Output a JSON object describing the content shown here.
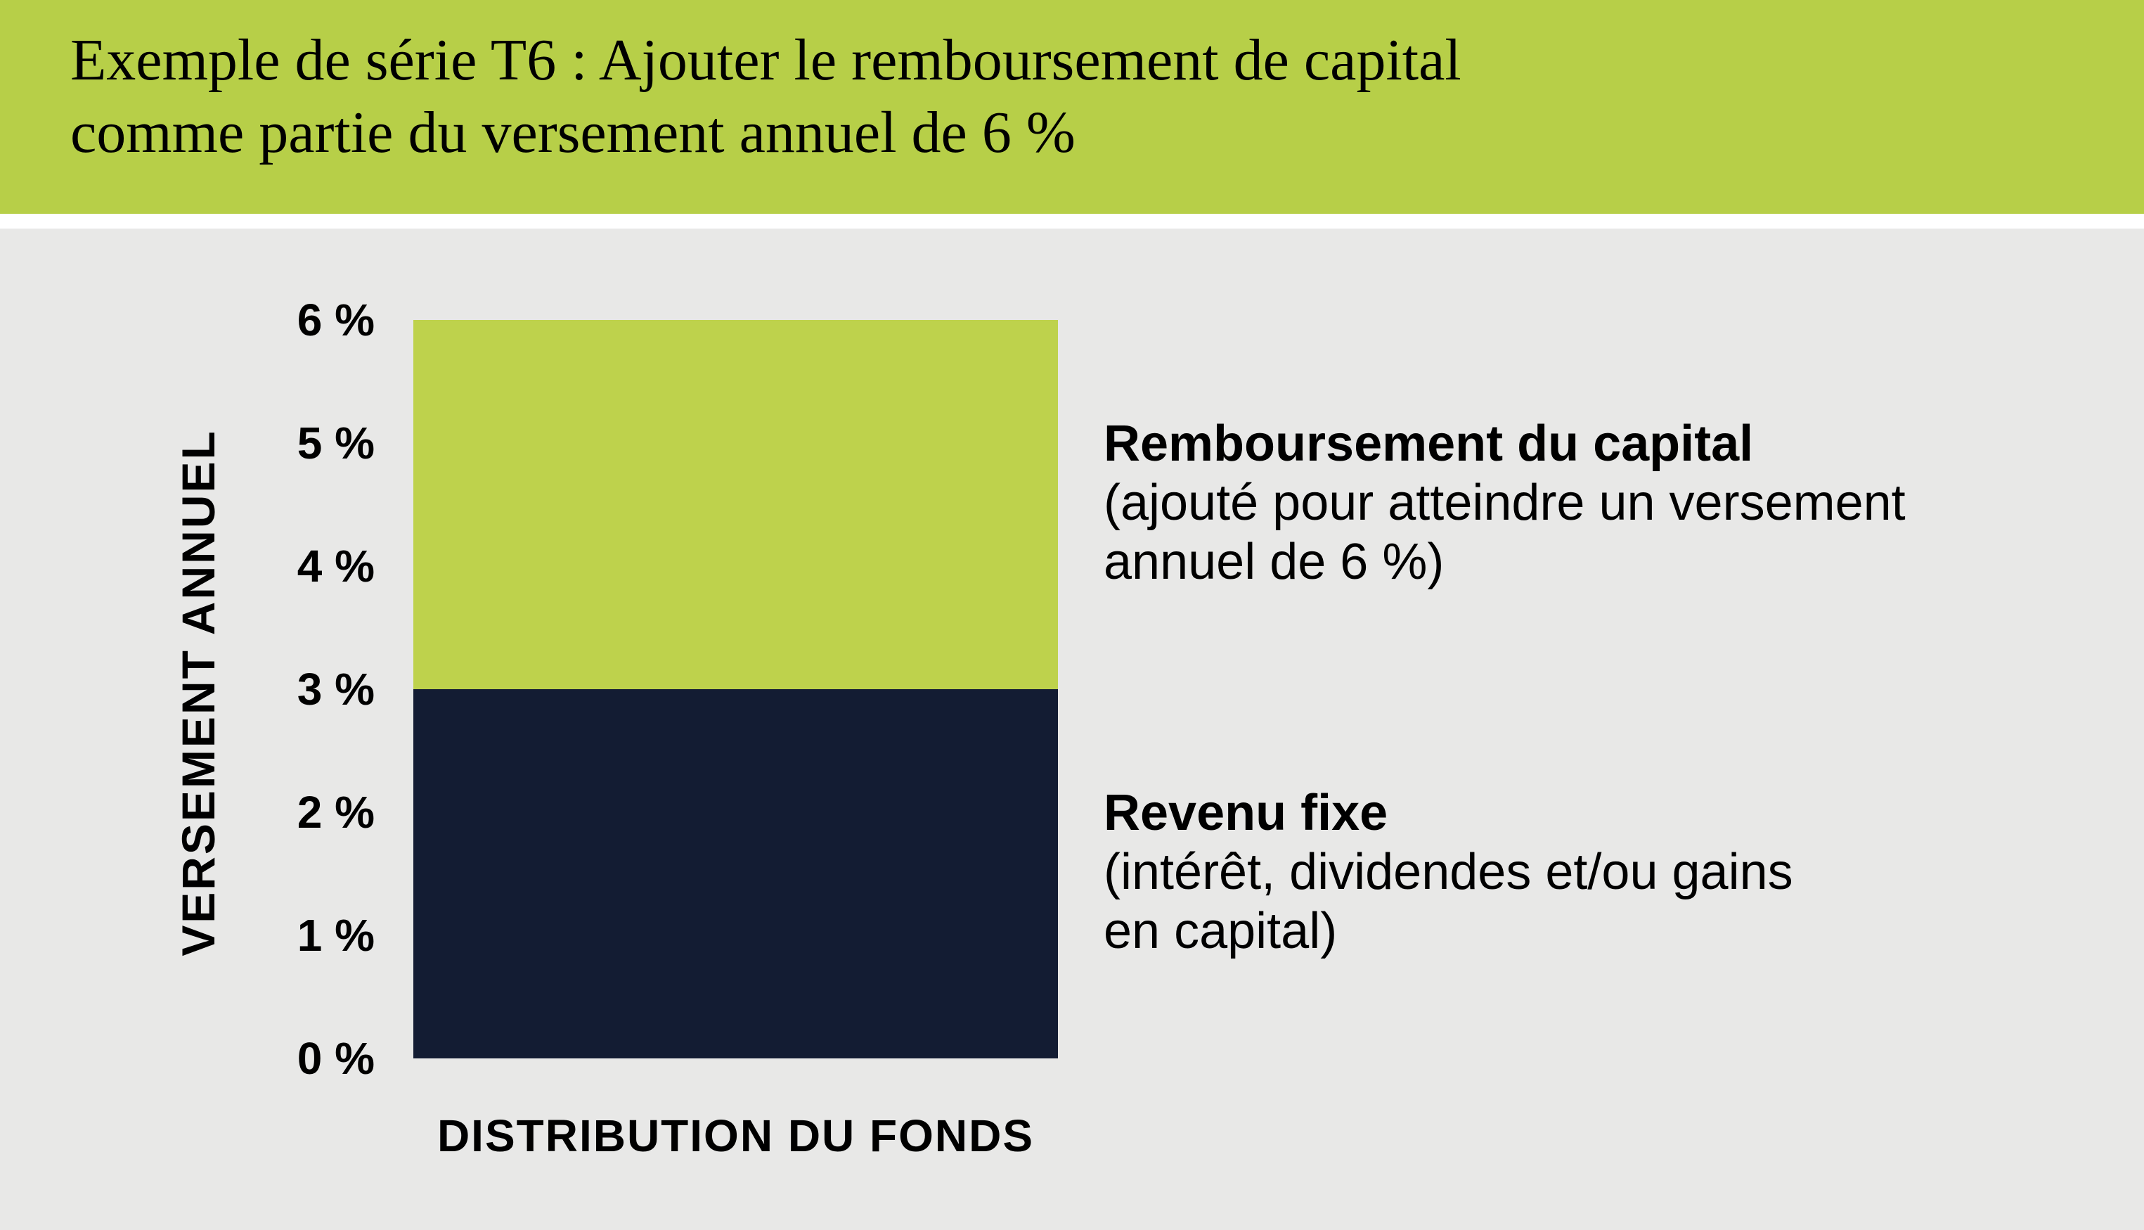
{
  "header": {
    "title_line1": "Exemple de série T6 : Ajouter le remboursement de capital",
    "title_line2": "comme partie du versement annuel de 6 %"
  },
  "colors": {
    "banner_green": "#B7CF48",
    "panel_gray": "#E8E8E7",
    "segment_green": "#BED24C",
    "segment_navy": "#131C33",
    "text_black": "#000000"
  },
  "chart_data": {
    "type": "bar",
    "stacked": true,
    "title": "Exemple de série T6 : Ajouter le remboursement de capital comme partie du versement annuel de 6 %",
    "categories": [
      "DISTRIBUTION DU FONDS"
    ],
    "series": [
      {
        "name": "Revenu fixe (intérêt, dividendes et/ou gains en capital)",
        "values": [
          3
        ],
        "color": "#131C33"
      },
      {
        "name": "Remboursement du capital (ajouté pour atteindre un versement annuel de 6 %)",
        "values": [
          3
        ],
        "color": "#BED24C"
      }
    ],
    "total_height_pct": 6,
    "xlabel": "DISTRIBUTION DU FONDS",
    "ylabel": "VERSEMENT ANNUEL",
    "ylim": [
      0,
      6
    ],
    "ytick_labels": [
      "6 %",
      "5 %",
      "4 %",
      "3 %",
      "2 %",
      "1 %",
      "0 %"
    ],
    "grid": false,
    "legend_position": "annotations right of bar"
  },
  "annotations": {
    "top": {
      "title": "Remboursement du capital",
      "line1": "(ajouté pour atteindre un versement",
      "line2": "annuel de 6 %)"
    },
    "bottom": {
      "title": "Revenu fixe",
      "line1": "(intérêt, dividendes et/ou gains",
      "line2": "en capital)"
    }
  }
}
